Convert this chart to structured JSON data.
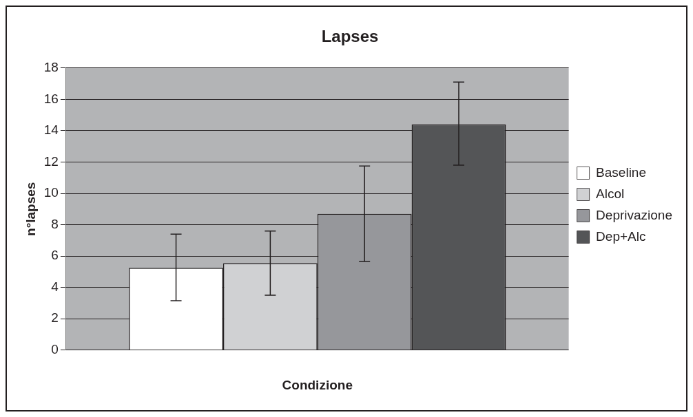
{
  "chart_data": {
    "type": "bar",
    "title": "Lapses",
    "xlabel": "Condizione",
    "ylabel": "n°lapses",
    "categories": [
      null
    ],
    "series": [
      {
        "name": "Baseline",
        "color": "#ffffff",
        "values": [
          5.25
        ],
        "errors": [
          [
            3.15,
            7.4
          ]
        ]
      },
      {
        "name": "Alcol",
        "color": "#d0d1d3",
        "values": [
          5.55
        ],
        "errors": [
          [
            3.5,
            7.6
          ]
        ]
      },
      {
        "name": "Deprivazione",
        "color": "#96979b",
        "values": [
          8.7
        ],
        "errors": [
          [
            5.65,
            11.75
          ]
        ]
      },
      {
        "name": "Dep+Alc",
        "color": "#545557",
        "values": [
          14.4
        ],
        "errors": [
          [
            11.8,
            17.1
          ]
        ]
      }
    ],
    "ylim": [
      0,
      18
    ],
    "yticks": [
      0,
      2,
      4,
      6,
      8,
      10,
      12,
      14,
      16,
      18
    ],
    "grid": "y",
    "legend": "right"
  }
}
